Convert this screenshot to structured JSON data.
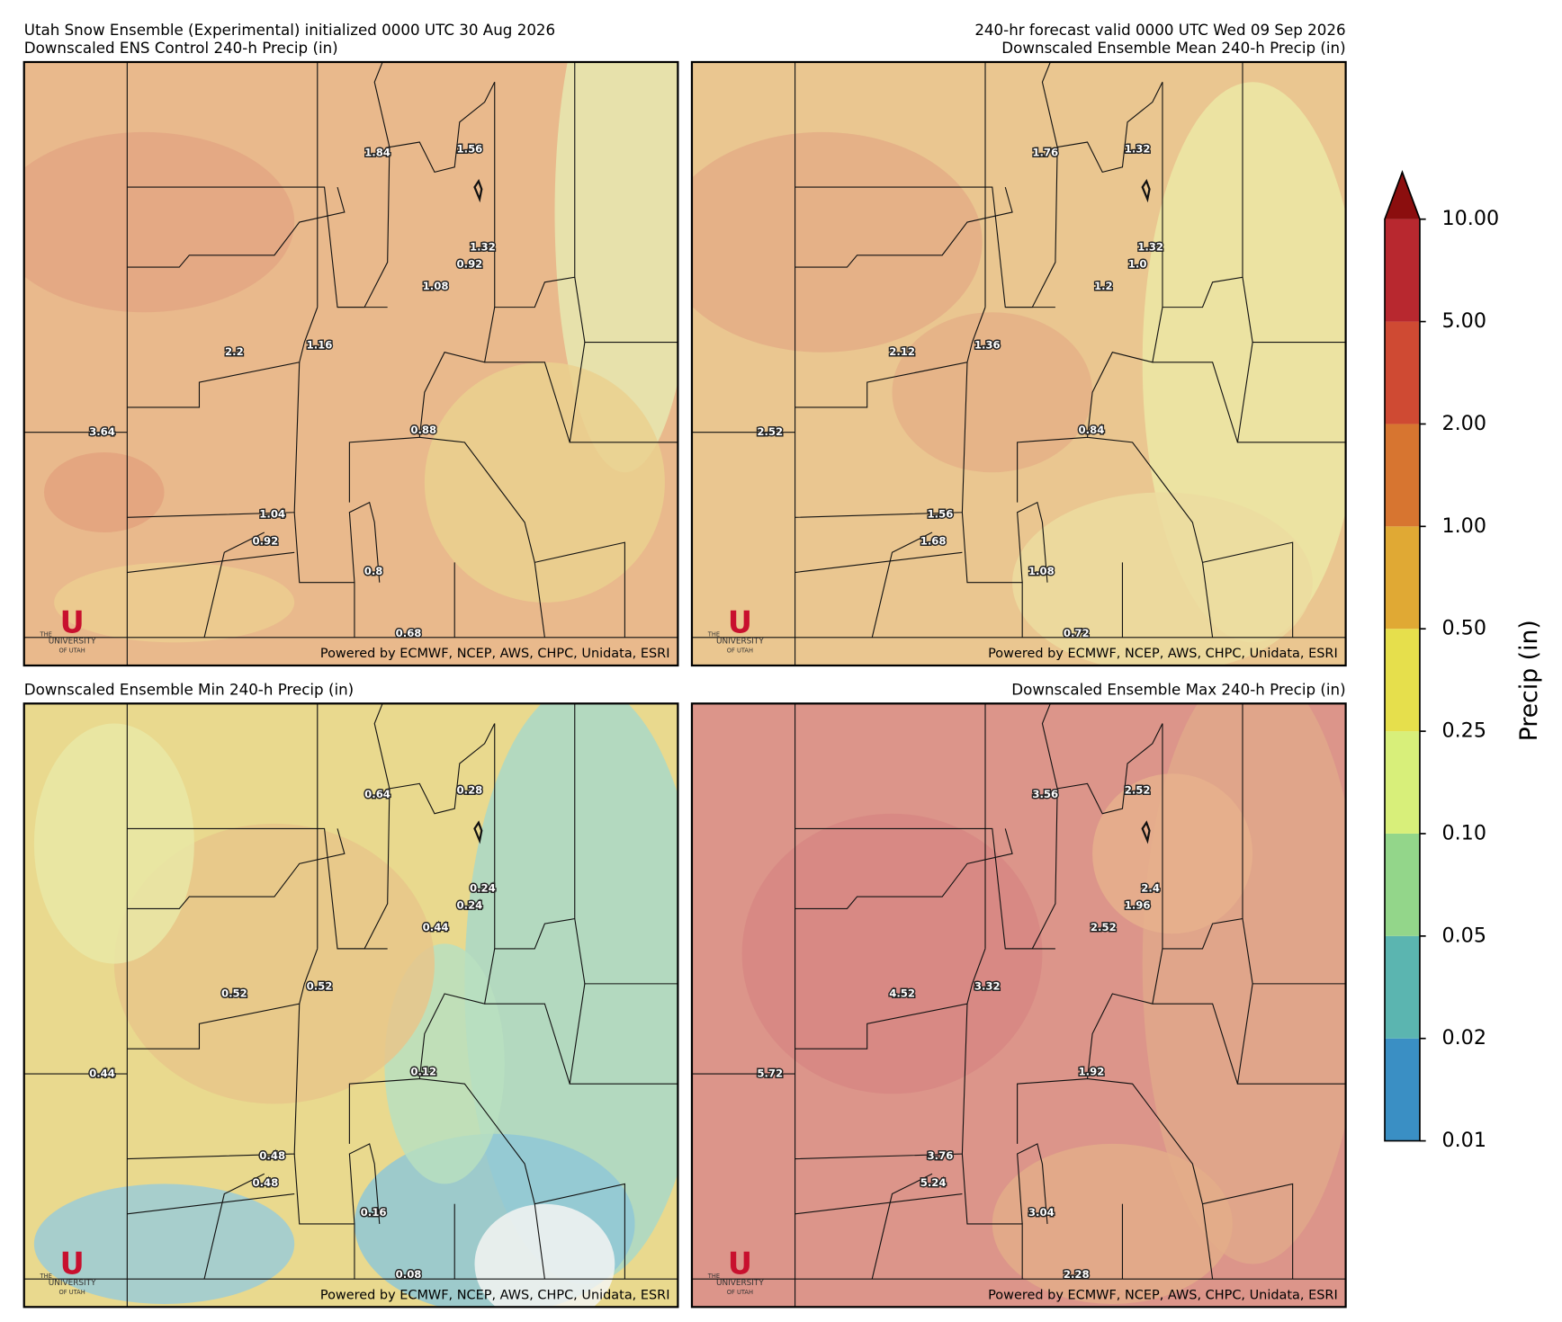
{
  "header": {
    "init": "Utah Snow Ensemble (Experimental) initialized 0000 UTC 30 Aug 2026",
    "valid": "240-hr forecast valid 0000 UTC Wed 09 Sep 2026"
  },
  "panels": [
    {
      "title": "Downscaled ENS Control 240-h Precip (in)",
      "labels": [
        "1.84",
        "1.56",
        "1.32",
        "0.92",
        "1.08",
        "2.2",
        "1.16",
        "3.64",
        "0.88",
        "1.04",
        "0.92",
        "0.8",
        "0.68"
      ]
    },
    {
      "title": "Downscaled Ensemble Mean 240-h Precip (in)",
      "labels": [
        "1.76",
        "1.32",
        "1.32",
        "1.0",
        "1.2",
        "2.12",
        "1.36",
        "2.52",
        "0.84",
        "1.56",
        "1.68",
        "1.08",
        "0.72"
      ]
    },
    {
      "title": "Downscaled Ensemble Min 240-h Precip (in)",
      "labels": [
        "0.64",
        "0.28",
        "0.24",
        "0.24",
        "0.44",
        "0.52",
        "0.52",
        "0.44",
        "0.12",
        "0.48",
        "0.48",
        "0.16",
        "0.08"
      ]
    },
    {
      "title": "Downscaled Ensemble Max 240-h Precip (in)",
      "labels": [
        "3.56",
        "2.52",
        "2.4",
        "1.96",
        "2.52",
        "4.52",
        "3.32",
        "5.72",
        "1.92",
        "3.76",
        "5.24",
        "3.04",
        "2.28"
      ]
    }
  ],
  "credit": "Powered by ECMWF, NCEP, AWS, CHPC, Unidata, ESRI",
  "logo": {
    "letter": "U",
    "the": "THE",
    "name": "UNIVERSITY",
    "of": "OF UTAH"
  },
  "colorbar": {
    "title": "Precip (in)",
    "ticks": [
      "0.01",
      "0.02",
      "0.05",
      "0.10",
      "0.25",
      "0.50",
      "1.00",
      "2.00",
      "5.00",
      "10.00"
    ]
  }
}
